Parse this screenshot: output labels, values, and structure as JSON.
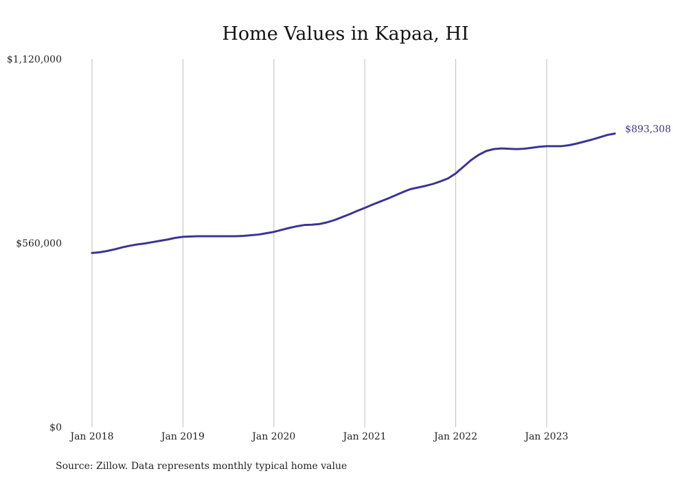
{
  "chart_data": {
    "type": "line",
    "title": "Home Values in Kapaa, HI",
    "xlabel": "",
    "ylabel": "",
    "x_ticks": [
      "Jan 2018",
      "Jan 2019",
      "Jan 2020",
      "Jan 2021",
      "Jan 2022",
      "Jan 2023"
    ],
    "y_ticks": [
      {
        "value": 0,
        "label": "$0"
      },
      {
        "value": 560000,
        "label": "$560,000"
      },
      {
        "value": 1120000,
        "label": "$1,120,000"
      }
    ],
    "ylim": [
      0,
      1120000
    ],
    "grid": "vertical",
    "series": [
      {
        "color": "#3b3494",
        "points": [
          [
            "2018-01",
            530000
          ],
          [
            "2018-02",
            532000
          ],
          [
            "2018-03",
            536000
          ],
          [
            "2018-04",
            541000
          ],
          [
            "2018-05",
            547000
          ],
          [
            "2018-06",
            552000
          ],
          [
            "2018-07",
            556000
          ],
          [
            "2018-08",
            559000
          ],
          [
            "2018-09",
            563000
          ],
          [
            "2018-10",
            567000
          ],
          [
            "2018-11",
            571000
          ],
          [
            "2018-12",
            576000
          ],
          [
            "2019-01",
            579000
          ],
          [
            "2019-02",
            580000
          ],
          [
            "2019-03",
            581000
          ],
          [
            "2019-04",
            581000
          ],
          [
            "2019-05",
            581000
          ],
          [
            "2019-06",
            581000
          ],
          [
            "2019-07",
            581000
          ],
          [
            "2019-08",
            581000
          ],
          [
            "2019-09",
            582000
          ],
          [
            "2019-10",
            584000
          ],
          [
            "2019-11",
            586000
          ],
          [
            "2019-12",
            590000
          ],
          [
            "2020-01",
            594000
          ],
          [
            "2020-02",
            600000
          ],
          [
            "2020-03",
            606000
          ],
          [
            "2020-04",
            611000
          ],
          [
            "2020-05",
            615000
          ],
          [
            "2020-06",
            616000
          ],
          [
            "2020-07",
            618000
          ],
          [
            "2020-08",
            623000
          ],
          [
            "2020-09",
            630000
          ],
          [
            "2020-10",
            639000
          ],
          [
            "2020-11",
            648000
          ],
          [
            "2020-12",
            658000
          ],
          [
            "2021-01",
            667000
          ],
          [
            "2021-02",
            677000
          ],
          [
            "2021-03",
            686000
          ],
          [
            "2021-04",
            695000
          ],
          [
            "2021-05",
            705000
          ],
          [
            "2021-06",
            715000
          ],
          [
            "2021-07",
            724000
          ],
          [
            "2021-08",
            729000
          ],
          [
            "2021-09",
            734000
          ],
          [
            "2021-10",
            740000
          ],
          [
            "2021-11",
            748000
          ],
          [
            "2021-12",
            757000
          ],
          [
            "2022-01",
            772000
          ],
          [
            "2022-02",
            792000
          ],
          [
            "2022-03",
            812000
          ],
          [
            "2022-04",
            828000
          ],
          [
            "2022-05",
            840000
          ],
          [
            "2022-06",
            846000
          ],
          [
            "2022-07",
            848000
          ],
          [
            "2022-08",
            847000
          ],
          [
            "2022-09",
            846000
          ],
          [
            "2022-10",
            847000
          ],
          [
            "2022-11",
            850000
          ],
          [
            "2022-12",
            853000
          ],
          [
            "2023-01",
            855000
          ],
          [
            "2023-02",
            855000
          ],
          [
            "2023-03",
            855000
          ],
          [
            "2023-04",
            858000
          ],
          [
            "2023-05",
            863000
          ],
          [
            "2023-06",
            869000
          ],
          [
            "2023-07",
            875000
          ],
          [
            "2023-08",
            882000
          ],
          [
            "2023-09",
            889000
          ],
          [
            "2023-10",
            893308
          ]
        ]
      }
    ],
    "end_label": "$893,308",
    "source": "Source: Zillow. Data represents monthly typical home value"
  }
}
